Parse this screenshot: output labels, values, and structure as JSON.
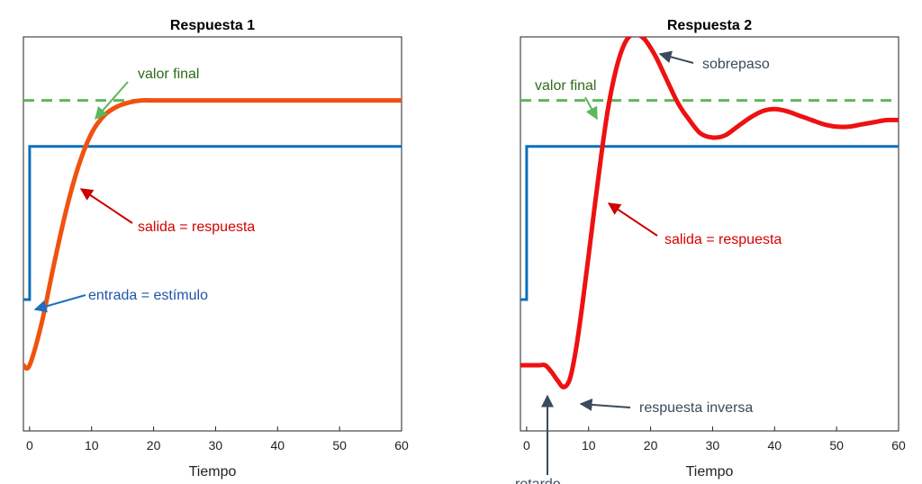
{
  "colors": {
    "input": "#0b6fbe",
    "output1": "#f0520f",
    "output2": "#ee1111",
    "final": "#5cb85c",
    "final_text": "#2e6b1c",
    "red_text": "#d40000",
    "blue_text": "#1f55a8",
    "dark_arrow": "#3b4a5c"
  },
  "chart_data": [
    {
      "type": "line",
      "title": "Respuesta 1",
      "xlabel": "Tiempo",
      "ylabel": "",
      "xlim": [
        -1,
        60
      ],
      "ylim": [
        -0.3,
        1.5
      ],
      "xticks": [
        0,
        10,
        20,
        30,
        40,
        50,
        60
      ],
      "series": [
        {
          "role": "input",
          "x": [
            -1,
            0,
            0,
            60
          ],
          "y": [
            0.3,
            0.3,
            1.0,
            1.0
          ]
        },
        {
          "role": "output",
          "x": [
            -1,
            0,
            2,
            4,
            6,
            8,
            10,
            12,
            14,
            16,
            18,
            20,
            24,
            30,
            40,
            60
          ],
          "y": [
            0.0,
            0.0,
            0.2,
            0.47,
            0.72,
            0.92,
            1.06,
            1.14,
            1.18,
            1.2,
            1.21,
            1.21,
            1.21,
            1.21,
            1.21,
            1.21
          ]
        },
        {
          "role": "final",
          "x": [
            -1,
            60
          ],
          "y": [
            1.21,
            1.21
          ]
        }
      ],
      "annotations": [
        {
          "text": "valor final",
          "role": "final"
        },
        {
          "text": "salida = respuesta",
          "role": "output"
        },
        {
          "text": "entrada = estímulo",
          "role": "input"
        }
      ]
    },
    {
      "type": "line",
      "title": "Respuesta 2",
      "xlabel": "Tiempo",
      "ylabel": "",
      "xlim": [
        -1,
        60
      ],
      "ylim": [
        -0.3,
        1.5
      ],
      "xticks": [
        0,
        10,
        20,
        30,
        40,
        50,
        60
      ],
      "series": [
        {
          "role": "input",
          "x": [
            -1,
            0,
            0,
            60
          ],
          "y": [
            0.3,
            0.3,
            1.0,
            1.0
          ]
        },
        {
          "role": "output",
          "x": [
            -1,
            0,
            2,
            3,
            4,
            5,
            6,
            7,
            8,
            9,
            10,
            11,
            12,
            13,
            14,
            15,
            16,
            17,
            18,
            19,
            20,
            21,
            22,
            23,
            24,
            25,
            26,
            28,
            30,
            32,
            34,
            36,
            38,
            40,
            42,
            44,
            46,
            48,
            50,
            52,
            54,
            56,
            58,
            60
          ],
          "y": [
            0.0,
            0.0,
            0.0,
            0.0,
            -0.03,
            -0.07,
            -0.1,
            -0.06,
            0.08,
            0.28,
            0.5,
            0.73,
            0.95,
            1.15,
            1.3,
            1.41,
            1.48,
            1.51,
            1.51,
            1.49,
            1.45,
            1.4,
            1.34,
            1.28,
            1.22,
            1.17,
            1.13,
            1.06,
            1.04,
            1.05,
            1.09,
            1.13,
            1.16,
            1.17,
            1.16,
            1.14,
            1.12,
            1.1,
            1.09,
            1.09,
            1.1,
            1.11,
            1.12,
            1.12
          ]
        },
        {
          "role": "final",
          "x": [
            -1,
            60
          ],
          "y": [
            1.21,
            1.21
          ]
        }
      ],
      "annotations": [
        {
          "text": "sobrepaso",
          "role": "dark"
        },
        {
          "text": "valor final",
          "role": "final"
        },
        {
          "text": "salida = respuesta",
          "role": "output"
        },
        {
          "text": "respuesta inversa",
          "role": "dark"
        },
        {
          "text": "retardo",
          "role": "dark"
        }
      ]
    }
  ]
}
